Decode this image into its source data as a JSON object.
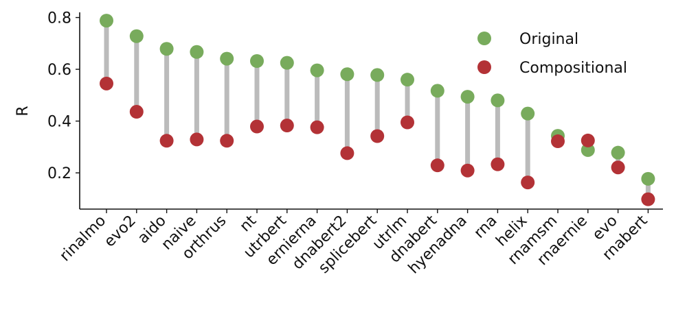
{
  "chart_data": {
    "type": "dumbbell",
    "ylabel": "R",
    "ylim": [
      0.06,
      0.82
    ],
    "yticks": [
      0.2,
      0.4,
      0.6,
      0.8
    ],
    "ytick_labels": [
      "0.2",
      "0.4",
      "0.6",
      "0.8"
    ],
    "grid": false,
    "legend_position": "top-right",
    "categories": [
      "rinalmo",
      "evo2",
      "aido",
      "naive",
      "orthrus",
      "nt",
      "utrbert",
      "ernierna",
      "dnabert2",
      "splicebert",
      "utrlm",
      "dnabert",
      "hyenadna",
      "rna",
      "helix",
      "rnamsm",
      "rnaernie",
      "evo",
      "rnabert"
    ],
    "series": [
      {
        "name": "Original",
        "color": "#78ab5c",
        "values": [
          0.788,
          0.728,
          0.679,
          0.667,
          0.641,
          0.632,
          0.625,
          0.596,
          0.581,
          0.578,
          0.56,
          0.517,
          0.494,
          0.48,
          0.429,
          0.343,
          0.288,
          0.278,
          0.177
        ]
      },
      {
        "name": "Compositional",
        "color": "#b33236",
        "values": [
          0.545,
          0.436,
          0.324,
          0.329,
          0.324,
          0.379,
          0.383,
          0.376,
          0.276,
          0.342,
          0.395,
          0.229,
          0.209,
          0.233,
          0.163,
          0.322,
          0.325,
          0.221,
          0.098
        ]
      }
    ],
    "connector_color": "#bbbbbb"
  }
}
